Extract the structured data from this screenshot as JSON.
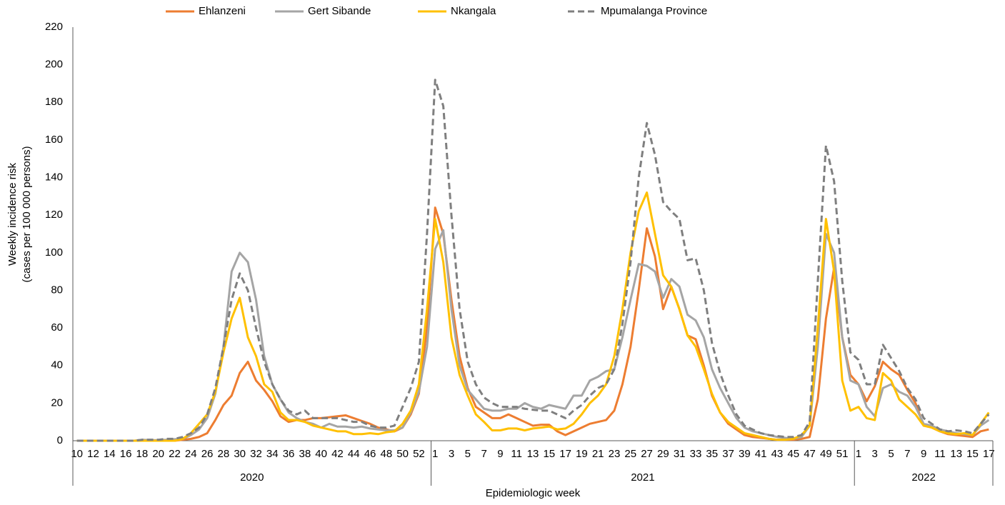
{
  "chart_data": {
    "type": "line",
    "y_label": [
      "Weekly incidence risk",
      "(cases per 100 000 persons)"
    ],
    "x_label": "Epidemiologic week",
    "year_groups": [
      "2020",
      "2021",
      "2022"
    ],
    "categories": [
      "10",
      null,
      "12",
      null,
      "14",
      null,
      "16",
      null,
      "18",
      null,
      "20",
      null,
      "22",
      null,
      "24",
      null,
      "26",
      null,
      "28",
      null,
      "30",
      null,
      "32",
      null,
      "34",
      null,
      "36",
      null,
      "38",
      null,
      "40",
      null,
      "42",
      null,
      "44",
      null,
      "46",
      null,
      "48",
      null,
      "50",
      null,
      "52",
      null,
      "1",
      null,
      "3",
      null,
      "5",
      null,
      "7",
      null,
      "9",
      null,
      "11",
      null,
      "13",
      null,
      "15",
      null,
      "17",
      null,
      "19",
      null,
      "21",
      null,
      "23",
      null,
      "25",
      null,
      "27",
      null,
      "29",
      null,
      "31",
      null,
      "33",
      null,
      "35",
      null,
      "37",
      null,
      "39",
      null,
      "41",
      null,
      "43",
      null,
      "45",
      null,
      "47",
      null,
      "49",
      null,
      "51",
      null,
      "1",
      null,
      "3",
      null,
      "5",
      null,
      "7",
      null,
      "9",
      null,
      "11",
      null,
      "13",
      null,
      "15",
      null,
      "17"
    ],
    "series": [
      {
        "name": "Ehlanzeni",
        "color": "#ED7D31",
        "dashed": false,
        "values": [
          0,
          0,
          0,
          0,
          0,
          0,
          0,
          0,
          0,
          0,
          0,
          0,
          0,
          0.5,
          1,
          2,
          4,
          11,
          19,
          24,
          36,
          42,
          32,
          27,
          21,
          13,
          10,
          11,
          11,
          12,
          12,
          12.5,
          13,
          13.5,
          12,
          10.5,
          9,
          7,
          6,
          5,
          7,
          14,
          25,
          60,
          124,
          110,
          75,
          45,
          28,
          18,
          15,
          12,
          12,
          14,
          12,
          10,
          8,
          8.5,
          8.5,
          5,
          3,
          5,
          7,
          9,
          10,
          11,
          16,
          30,
          50,
          80,
          113,
          98,
          70,
          82,
          70,
          56,
          54,
          40,
          24,
          15,
          9,
          6,
          3,
          2,
          1.5,
          1,
          0.5,
          0.5,
          0.5,
          1,
          2,
          22,
          65,
          92,
          55,
          35,
          30,
          21,
          29,
          42,
          38,
          35,
          27,
          20,
          8,
          7,
          5,
          3.5,
          3,
          2.5,
          2,
          5,
          6
        ]
      },
      {
        "name": "Gert Sibande",
        "color": "#A5A5A5",
        "dashed": false,
        "values": [
          0,
          0,
          0,
          0,
          0,
          0,
          0,
          0,
          0.5,
          0.3,
          0.3,
          0.5,
          0.8,
          1,
          3,
          6,
          12,
          25,
          50,
          90,
          100,
          95,
          75,
          45,
          30,
          22,
          15,
          12,
          10,
          9,
          7,
          9,
          7.5,
          7.5,
          7,
          7.5,
          6.5,
          6,
          5.5,
          5.5,
          7,
          15,
          26,
          50,
          102,
          112,
          70,
          40,
          27,
          22,
          17,
          16,
          16,
          17,
          17,
          20,
          18,
          17,
          19,
          18,
          17,
          24,
          24,
          32,
          34,
          37,
          38,
          55,
          75,
          94,
          93,
          90,
          76,
          86,
          82,
          67,
          64,
          55,
          38,
          28,
          20,
          12,
          7,
          5,
          4,
          3,
          2,
          1.5,
          1,
          2,
          8,
          50,
          110,
          100,
          55,
          32,
          30,
          18,
          13,
          28,
          30,
          26,
          24,
          18,
          9,
          8,
          6,
          5,
          4,
          3.5,
          3,
          8,
          11
        ]
      },
      {
        "name": "Nkangala",
        "color": "#FFC000",
        "dashed": false,
        "values": [
          0,
          0,
          0,
          0,
          0,
          0,
          0,
          0,
          0,
          0,
          0,
          0,
          0,
          1,
          4,
          9,
          14,
          26,
          47,
          65,
          76,
          55,
          45,
          30,
          26,
          15,
          11,
          11,
          10,
          8,
          7,
          6,
          5,
          5,
          3.5,
          3.5,
          4,
          3.5,
          4.5,
          5,
          9,
          16,
          30,
          70,
          118,
          95,
          55,
          35,
          24,
          14,
          10,
          5.5,
          5.5,
          6.5,
          6.5,
          5.5,
          6.5,
          7,
          7.5,
          6,
          6.5,
          9,
          14,
          20,
          24,
          30,
          45,
          70,
          100,
          122,
          132,
          110,
          88,
          82,
          70,
          56,
          50,
          38,
          25,
          15,
          10,
          7,
          4,
          3,
          2,
          1,
          0.5,
          0.5,
          1,
          3,
          8,
          60,
          118,
          90,
          32,
          16,
          18,
          12,
          11,
          36,
          32,
          22,
          18,
          14,
          8,
          7,
          5,
          4,
          3.5,
          4,
          3,
          9,
          15
        ]
      },
      {
        "name": "Mpumalanga Province",
        "color": "#7F7F7F",
        "dashed": true,
        "values": [
          0,
          0,
          0,
          0,
          0,
          0,
          0,
          0,
          0.5,
          0.5,
          0.5,
          1,
          1,
          2,
          4,
          7,
          14,
          28,
          50,
          75,
          89,
          80,
          60,
          42,
          30,
          22,
          16,
          14,
          16,
          12,
          12,
          12,
          12,
          11,
          10,
          10,
          8,
          7,
          7,
          8,
          18,
          28,
          42,
          110,
          192,
          178,
          120,
          70,
          42,
          30,
          23,
          20,
          18,
          18,
          18,
          17,
          16.5,
          16,
          16,
          14,
          12,
          16,
          19,
          24,
          28,
          30,
          38,
          62,
          95,
          140,
          169,
          152,
          127,
          122,
          118,
          96,
          97,
          80,
          52,
          36,
          24,
          14,
          8,
          6,
          4,
          3,
          2.5,
          2,
          2,
          3,
          10,
          85,
          157,
          138,
          85,
          47,
          43,
          30,
          30,
          51,
          44,
          37,
          28,
          22,
          12,
          9,
          6,
          5,
          5.5,
          5,
          4,
          9,
          14
        ]
      }
    ],
    "ylim": [
      0,
      220
    ],
    "yticks": [
      0,
      20,
      40,
      60,
      80,
      100,
      120,
      140,
      160,
      180,
      200,
      220
    ],
    "grid": false
  }
}
